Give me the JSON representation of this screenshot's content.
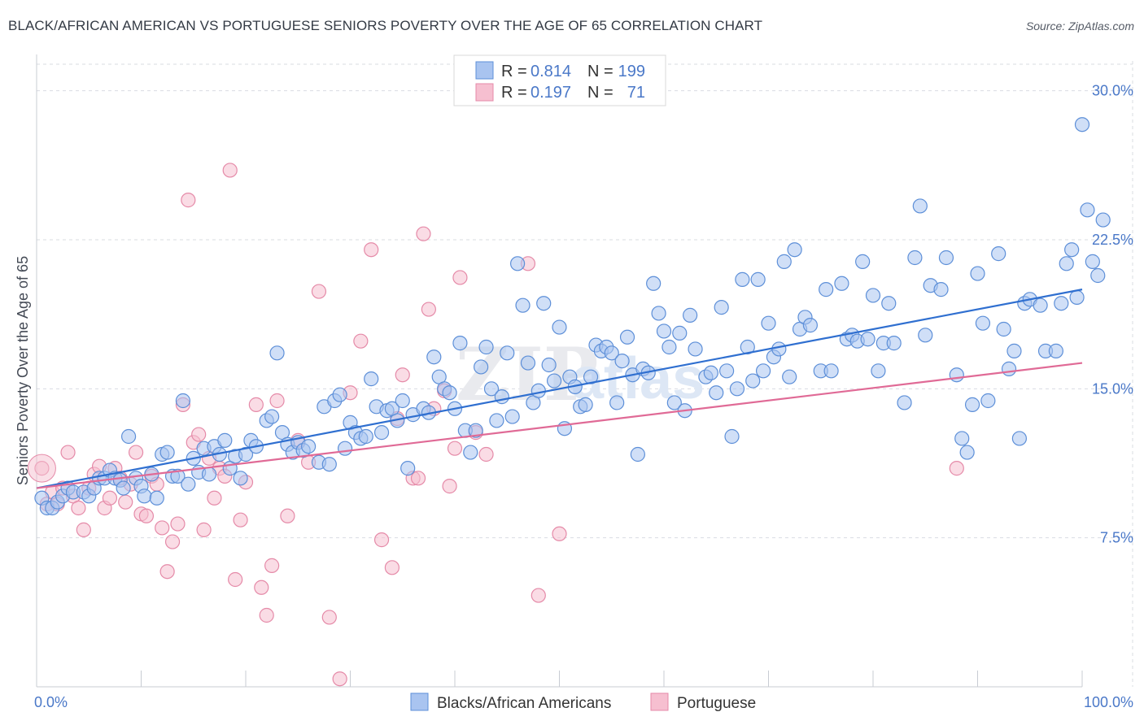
{
  "header": {
    "title": "BLACK/AFRICAN AMERICAN VS PORTUGUESE SENIORS POVERTY OVER THE AGE OF 65 CORRELATION CHART",
    "source": "Source: ZipAtlas.com"
  },
  "legend": {
    "entries": [
      {
        "r_label": "R =",
        "r_value": "0.814",
        "n_label": "N =",
        "n_value": "199"
      },
      {
        "r_label": "R =",
        "r_value": "0.197",
        "n_label": "N =",
        "n_value": "71"
      }
    ]
  },
  "bottom_legend": [
    "Blacks/African Americans",
    "Portuguese"
  ],
  "colors": {
    "blue_fill": "#a9c4f0",
    "blue_stroke": "#5d8fd8",
    "blue_line": "#2f6fd0",
    "pink_fill": "#f6bfd0",
    "pink_stroke": "#e58aa8",
    "pink_line": "#e06a96",
    "accent_text": "#4a78c8"
  },
  "chart_data": {
    "type": "scatter",
    "title": "BLACK/AFRICAN AMERICAN VS PORTUGUESE SENIORS POVERTY OVER THE AGE OF 65 CORRELATION CHART",
    "xlabel": "",
    "ylabel": "Seniors Poverty Over the Age of 65",
    "xlim": [
      0,
      100
    ],
    "ylim": [
      0,
      31.5
    ],
    "x_tick_labels": [
      "0.0%",
      "100.0%"
    ],
    "y_ticks": [
      7.5,
      15.0,
      22.5,
      30.0
    ],
    "y_tick_labels": [
      "7.5%",
      "15.0%",
      "22.5%",
      "30.0%"
    ],
    "grid": true,
    "watermark": "ZIPatlas",
    "series": [
      {
        "name": "Blacks/African Americans",
        "trend": {
          "x0": 0,
          "y0": 10.0,
          "x1": 100,
          "y1": 20.0
        },
        "points": [
          [
            0.5,
            9.5
          ],
          [
            1.0,
            9.0
          ],
          [
            1.5,
            9.0
          ],
          [
            2.0,
            9.3
          ],
          [
            2.5,
            9.6
          ],
          [
            3.0,
            10.0
          ],
          [
            3.5,
            9.8
          ],
          [
            4.5,
            9.8
          ],
          [
            5.0,
            9.6
          ],
          [
            5.5,
            10.0
          ],
          [
            6.0,
            10.5
          ],
          [
            6.5,
            10.5
          ],
          [
            7.0,
            10.9
          ],
          [
            7.5,
            10.5
          ],
          [
            8.0,
            10.4
          ],
          [
            8.3,
            10.0
          ],
          [
            8.8,
            12.6
          ],
          [
            9.5,
            10.5
          ],
          [
            10.0,
            10.1
          ],
          [
            10.3,
            9.6
          ],
          [
            11.0,
            10.7
          ],
          [
            11.5,
            9.5
          ],
          [
            12.0,
            11.7
          ],
          [
            12.5,
            11.8
          ],
          [
            13.0,
            10.6
          ],
          [
            13.5,
            10.6
          ],
          [
            14.0,
            14.4
          ],
          [
            14.5,
            10.2
          ],
          [
            15.0,
            11.5
          ],
          [
            15.5,
            10.8
          ],
          [
            16.0,
            12.0
          ],
          [
            16.5,
            10.7
          ],
          [
            17.0,
            12.1
          ],
          [
            17.5,
            11.7
          ],
          [
            18.0,
            12.4
          ],
          [
            18.5,
            11.0
          ],
          [
            19.0,
            11.6
          ],
          [
            19.5,
            10.5
          ],
          [
            20.0,
            11.7
          ],
          [
            20.5,
            12.4
          ],
          [
            21.0,
            12.1
          ],
          [
            22.0,
            13.4
          ],
          [
            22.5,
            13.6
          ],
          [
            23.0,
            16.8
          ],
          [
            23.5,
            12.8
          ],
          [
            24.0,
            12.2
          ],
          [
            24.5,
            11.8
          ],
          [
            25.0,
            12.3
          ],
          [
            25.5,
            11.9
          ],
          [
            26.0,
            12.1
          ],
          [
            27.0,
            11.3
          ],
          [
            27.5,
            14.1
          ],
          [
            28.0,
            11.2
          ],
          [
            28.5,
            14.4
          ],
          [
            29.0,
            14.7
          ],
          [
            29.5,
            12.0
          ],
          [
            30.0,
            13.3
          ],
          [
            30.5,
            12.8
          ],
          [
            31.0,
            12.5
          ],
          [
            31.5,
            12.6
          ],
          [
            32.0,
            15.5
          ],
          [
            32.5,
            14.1
          ],
          [
            33.0,
            12.8
          ],
          [
            33.5,
            13.9
          ],
          [
            34.0,
            14.0
          ],
          [
            34.5,
            13.4
          ],
          [
            35.0,
            14.4
          ],
          [
            35.5,
            11.0
          ],
          [
            36.0,
            13.7
          ],
          [
            37.0,
            14.0
          ],
          [
            37.5,
            13.8
          ],
          [
            38.0,
            16.6
          ],
          [
            38.5,
            15.6
          ],
          [
            39.0,
            15.0
          ],
          [
            39.5,
            14.8
          ],
          [
            40.0,
            14.0
          ],
          [
            40.5,
            17.3
          ],
          [
            41.0,
            12.9
          ],
          [
            41.5,
            11.8
          ],
          [
            42.0,
            12.9
          ],
          [
            42.5,
            16.1
          ],
          [
            43.0,
            17.1
          ],
          [
            43.5,
            15.0
          ],
          [
            44.0,
            13.4
          ],
          [
            44.5,
            14.6
          ],
          [
            45.0,
            16.8
          ],
          [
            45.5,
            13.6
          ],
          [
            46.0,
            21.3
          ],
          [
            46.5,
            19.2
          ],
          [
            47.0,
            16.3
          ],
          [
            47.5,
            14.3
          ],
          [
            48.0,
            14.9
          ],
          [
            48.5,
            19.3
          ],
          [
            49.0,
            16.2
          ],
          [
            49.5,
            15.4
          ],
          [
            50.0,
            18.1
          ],
          [
            50.5,
            13.0
          ],
          [
            51.0,
            15.6
          ],
          [
            51.5,
            15.1
          ],
          [
            52.0,
            14.1
          ],
          [
            52.5,
            14.2
          ],
          [
            53.0,
            15.6
          ],
          [
            53.5,
            17.2
          ],
          [
            54.0,
            16.9
          ],
          [
            54.5,
            17.1
          ],
          [
            55.0,
            16.8
          ],
          [
            55.5,
            14.3
          ],
          [
            56.0,
            16.4
          ],
          [
            56.5,
            17.6
          ],
          [
            57.0,
            15.7
          ],
          [
            57.5,
            11.7
          ],
          [
            58.0,
            16.0
          ],
          [
            58.5,
            15.8
          ],
          [
            59.0,
            20.3
          ],
          [
            59.5,
            18.8
          ],
          [
            60.0,
            17.9
          ],
          [
            60.5,
            17.1
          ],
          [
            61.0,
            14.3
          ],
          [
            61.5,
            17.8
          ],
          [
            62.0,
            13.9
          ],
          [
            62.5,
            18.7
          ],
          [
            63.0,
            17.0
          ],
          [
            64.0,
            15.6
          ],
          [
            64.5,
            15.8
          ],
          [
            65.0,
            14.8
          ],
          [
            65.5,
            19.1
          ],
          [
            66.0,
            15.9
          ],
          [
            66.5,
            12.6
          ],
          [
            67.0,
            15.0
          ],
          [
            67.5,
            20.5
          ],
          [
            68.0,
            17.1
          ],
          [
            68.5,
            15.4
          ],
          [
            69.0,
            20.5
          ],
          [
            69.5,
            15.9
          ],
          [
            70.0,
            18.3
          ],
          [
            70.5,
            16.6
          ],
          [
            71.0,
            17.0
          ],
          [
            71.5,
            21.4
          ],
          [
            72.0,
            15.6
          ],
          [
            72.5,
            22.0
          ],
          [
            73.0,
            18.0
          ],
          [
            73.5,
            18.6
          ],
          [
            74.0,
            18.2
          ],
          [
            75.0,
            15.9
          ],
          [
            75.5,
            20.0
          ],
          [
            76.0,
            15.9
          ],
          [
            77.0,
            20.3
          ],
          [
            77.5,
            17.5
          ],
          [
            78.0,
            17.7
          ],
          [
            78.5,
            17.4
          ],
          [
            79.0,
            21.4
          ],
          [
            79.5,
            17.5
          ],
          [
            80.0,
            19.7
          ],
          [
            80.5,
            15.9
          ],
          [
            81.0,
            17.3
          ],
          [
            81.5,
            19.3
          ],
          [
            82.0,
            17.3
          ],
          [
            83.0,
            14.3
          ],
          [
            84.0,
            21.6
          ],
          [
            84.5,
            24.2
          ],
          [
            85.0,
            17.7
          ],
          [
            85.5,
            20.2
          ],
          [
            86.5,
            20.0
          ],
          [
            87.0,
            21.6
          ],
          [
            88.0,
            15.7
          ],
          [
            88.5,
            12.5
          ],
          [
            89.0,
            11.8
          ],
          [
            89.5,
            14.2
          ],
          [
            90.0,
            20.8
          ],
          [
            90.5,
            18.3
          ],
          [
            91.0,
            14.4
          ],
          [
            92.0,
            21.8
          ],
          [
            92.5,
            18.0
          ],
          [
            93.0,
            16.0
          ],
          [
            93.5,
            16.9
          ],
          [
            94.0,
            12.5
          ],
          [
            94.5,
            19.3
          ],
          [
            95.0,
            19.5
          ],
          [
            96.0,
            19.2
          ],
          [
            96.5,
            16.9
          ],
          [
            97.5,
            16.9
          ],
          [
            98.0,
            19.3
          ],
          [
            98.5,
            21.3
          ],
          [
            99.0,
            22.0
          ],
          [
            99.5,
            19.6
          ],
          [
            100.0,
            28.3
          ],
          [
            100.5,
            24.0
          ],
          [
            101.0,
            21.4
          ],
          [
            101.5,
            20.7
          ],
          [
            102.0,
            23.5
          ]
        ]
      },
      {
        "name": "Portuguese",
        "trend": {
          "x0": 0,
          "y0": 10.0,
          "x1": 100,
          "y1": 16.3
        },
        "points": [
          [
            0.5,
            11.0
          ],
          [
            1.0,
            9.2
          ],
          [
            1.5,
            9.8
          ],
          [
            2.0,
            9.2
          ],
          [
            2.5,
            10.0
          ],
          [
            3.0,
            11.8
          ],
          [
            3.5,
            9.6
          ],
          [
            4.0,
            9.0
          ],
          [
            4.5,
            7.9
          ],
          [
            5.0,
            10.0
          ],
          [
            5.5,
            10.7
          ],
          [
            6.0,
            11.1
          ],
          [
            6.5,
            9.0
          ],
          [
            7.0,
            9.5
          ],
          [
            7.5,
            11.0
          ],
          [
            8.0,
            10.5
          ],
          [
            8.5,
            9.3
          ],
          [
            9.0,
            10.2
          ],
          [
            9.5,
            11.8
          ],
          [
            10.0,
            8.7
          ],
          [
            10.5,
            8.6
          ],
          [
            11.0,
            10.6
          ],
          [
            11.5,
            10.2
          ],
          [
            12.0,
            8.0
          ],
          [
            12.5,
            5.8
          ],
          [
            13.0,
            7.3
          ],
          [
            13.5,
            8.2
          ],
          [
            14.0,
            14.2
          ],
          [
            14.5,
            24.5
          ],
          [
            15.0,
            12.3
          ],
          [
            15.5,
            12.7
          ],
          [
            16.0,
            7.9
          ],
          [
            16.5,
            11.5
          ],
          [
            17.0,
            9.5
          ],
          [
            17.5,
            11.0
          ],
          [
            18.0,
            10.6
          ],
          [
            18.5,
            26.0
          ],
          [
            19.0,
            5.4
          ],
          [
            19.5,
            8.4
          ],
          [
            20.0,
            10.3
          ],
          [
            21.0,
            14.2
          ],
          [
            21.5,
            5.0
          ],
          [
            22.0,
            3.6
          ],
          [
            22.5,
            6.1
          ],
          [
            23.0,
            14.4
          ],
          [
            24.0,
            8.6
          ],
          [
            25.0,
            12.4
          ],
          [
            26.0,
            11.3
          ],
          [
            27.0,
            19.9
          ],
          [
            28.0,
            3.5
          ],
          [
            29.0,
            0.4
          ],
          [
            30.0,
            14.8
          ],
          [
            31.0,
            17.4
          ],
          [
            32.0,
            22.0
          ],
          [
            33.0,
            7.4
          ],
          [
            34.0,
            6.0
          ],
          [
            34.5,
            13.5
          ],
          [
            35.0,
            15.7
          ],
          [
            36.0,
            10.5
          ],
          [
            36.5,
            10.5
          ],
          [
            37.0,
            22.8
          ],
          [
            37.5,
            19.0
          ],
          [
            38.0,
            14.0
          ],
          [
            39.0,
            14.9
          ],
          [
            39.5,
            10.1
          ],
          [
            40.0,
            12.0
          ],
          [
            40.5,
            20.6
          ],
          [
            42.0,
            12.8
          ],
          [
            43.0,
            11.7
          ],
          [
            47.0,
            21.3
          ],
          [
            48.0,
            4.6
          ],
          [
            50.0,
            7.7
          ],
          [
            88.0,
            11.0
          ]
        ]
      }
    ]
  }
}
